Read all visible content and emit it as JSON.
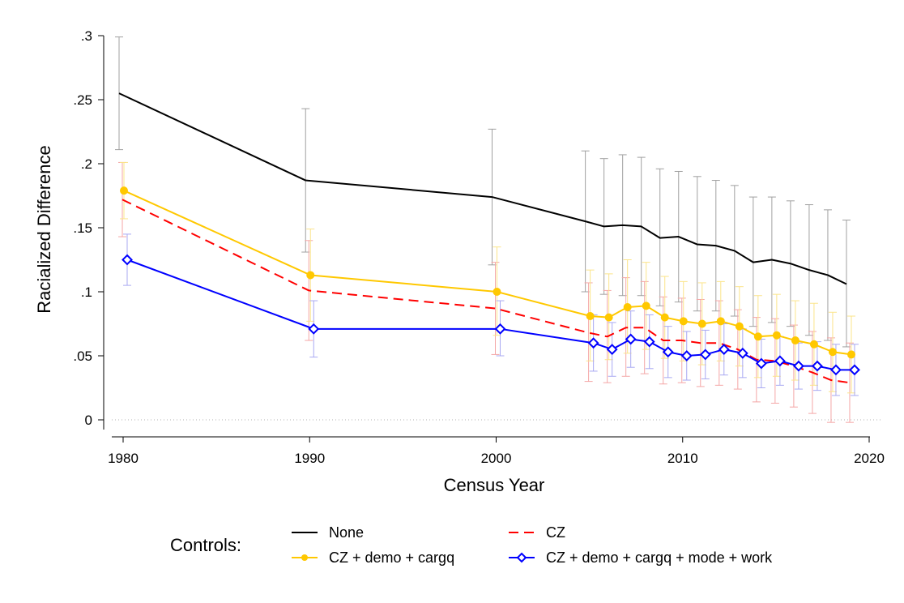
{
  "chart_data": {
    "type": "line",
    "title": "",
    "xlabel": "Census Year",
    "ylabel": "Racialized Difference",
    "xlim": [
      1980,
      2020
    ],
    "ylim": [
      0,
      0.3
    ],
    "x_ticks": [
      {
        "value": 1980,
        "label": "1980"
      },
      {
        "value": 1990,
        "label": "1990"
      },
      {
        "value": 2000,
        "label": "2000"
      },
      {
        "value": 2010,
        "label": "2010"
      },
      {
        "value": 2020,
        "label": "2020"
      }
    ],
    "y_ticks": [
      {
        "value": 0,
        "label": "0"
      },
      {
        "value": 0.05,
        "label": ".05"
      },
      {
        "value": 0.1,
        "label": ".1"
      },
      {
        "value": 0.15,
        "label": ".15"
      },
      {
        "value": 0.2,
        "label": ".2"
      },
      {
        "value": 0.25,
        "label": ".25"
      },
      {
        "value": 0.3,
        "label": ".3"
      }
    ],
    "reference_line": 0,
    "grid": false,
    "legend": {
      "title": "Controls:",
      "position": "bottom"
    },
    "x": [
      1980,
      1990,
      2000,
      2005,
      2006,
      2007,
      2008,
      2009,
      2010,
      2011,
      2012,
      2013,
      2014,
      2015,
      2016,
      2017,
      2018,
      2019
    ],
    "series": [
      {
        "name": "None",
        "color": "#000000",
        "error_color": "#a0a0a0",
        "dash": "solid",
        "marker": "none",
        "values": [
          0.255,
          0.187,
          0.174,
          0.155,
          0.151,
          0.152,
          0.151,
          0.142,
          0.143,
          0.137,
          0.136,
          0.132,
          0.123,
          0.125,
          0.122,
          0.117,
          0.113,
          0.106
        ],
        "ci_low": [
          0.211,
          0.131,
          0.121,
          0.1,
          0.098,
          0.097,
          0.097,
          0.089,
          0.092,
          0.085,
          0.085,
          0.081,
          0.073,
          0.076,
          0.073,
          0.066,
          0.062,
          0.057
        ],
        "ci_high": [
          0.299,
          0.243,
          0.227,
          0.21,
          0.204,
          0.207,
          0.205,
          0.196,
          0.194,
          0.19,
          0.187,
          0.183,
          0.174,
          0.174,
          0.171,
          0.168,
          0.164,
          0.156
        ]
      },
      {
        "name": "CZ",
        "color": "#ff0000",
        "error_color": "#f4a6a6",
        "dash": "dashed",
        "marker": "none",
        "values": [
          0.172,
          0.101,
          0.087,
          0.068,
          0.065,
          0.072,
          0.072,
          0.062,
          0.062,
          0.06,
          0.06,
          0.055,
          0.047,
          0.046,
          0.042,
          0.037,
          0.031,
          0.029
        ],
        "ci_low": [
          0.143,
          0.062,
          0.051,
          0.03,
          0.029,
          0.034,
          0.036,
          0.028,
          0.029,
          0.026,
          0.027,
          0.024,
          0.014,
          0.013,
          0.01,
          0.005,
          -0.002,
          -0.002
        ],
        "ci_high": [
          0.201,
          0.14,
          0.123,
          0.107,
          0.101,
          0.111,
          0.108,
          0.096,
          0.095,
          0.094,
          0.093,
          0.086,
          0.08,
          0.079,
          0.074,
          0.069,
          0.064,
          0.06
        ]
      },
      {
        "name": "CZ + demo + cargq",
        "color": "#ffc800",
        "error_color": "#fbe48a",
        "dash": "solid",
        "marker": "circle",
        "values": [
          0.179,
          0.113,
          0.1,
          0.081,
          0.08,
          0.088,
          0.089,
          0.08,
          0.077,
          0.075,
          0.077,
          0.073,
          0.065,
          0.066,
          0.062,
          0.059,
          0.053,
          0.051
        ],
        "ci_low": [
          0.157,
          0.077,
          0.066,
          0.046,
          0.047,
          0.052,
          0.055,
          0.048,
          0.046,
          0.043,
          0.046,
          0.042,
          0.033,
          0.034,
          0.031,
          0.027,
          0.022,
          0.021
        ],
        "ci_high": [
          0.201,
          0.149,
          0.135,
          0.117,
          0.114,
          0.125,
          0.123,
          0.112,
          0.108,
          0.107,
          0.108,
          0.104,
          0.097,
          0.098,
          0.093,
          0.091,
          0.084,
          0.081
        ]
      },
      {
        "name": "CZ + demo + cargq + mode + work",
        "color": "#0000ff",
        "error_color": "#a9a9f2",
        "dash": "solid",
        "marker": "diamond",
        "values": [
          0.125,
          0.071,
          0.071,
          0.06,
          0.055,
          0.063,
          0.061,
          0.053,
          0.05,
          0.051,
          0.055,
          0.052,
          0.044,
          0.046,
          0.042,
          0.042,
          0.039,
          0.039
        ],
        "ci_low": [
          0.105,
          0.049,
          0.05,
          0.038,
          0.034,
          0.041,
          0.04,
          0.033,
          0.031,
          0.032,
          0.035,
          0.033,
          0.025,
          0.027,
          0.024,
          0.023,
          0.019,
          0.019
        ],
        "ci_high": [
          0.145,
          0.093,
          0.093,
          0.082,
          0.076,
          0.085,
          0.082,
          0.073,
          0.069,
          0.07,
          0.075,
          0.071,
          0.063,
          0.065,
          0.06,
          0.061,
          0.059,
          0.059
        ]
      }
    ]
  }
}
